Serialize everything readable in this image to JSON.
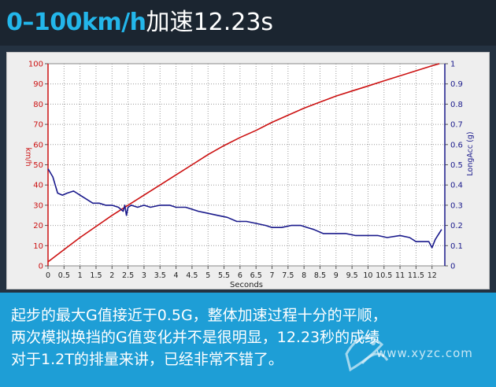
{
  "header": {
    "title_metric": "0–100km/h",
    "title_rest": "加速12.23s"
  },
  "caption": {
    "lines": [
      "起步的最大G值接近于0.5G，整体加速过程十分的平顺，",
      "两次模拟换挡的G值变化并不是很明显，12.23秒的成绩",
      "对于1.2T的排量来讲，已经非常不错了。"
    ]
  },
  "watermark": {
    "text": "www.xyzc.com"
  },
  "chart_data": {
    "type": "line",
    "title": "",
    "xlabel": "Seconds",
    "ylabel_left": "km/h",
    "ylabel_right": "LongAcc (g)",
    "xlim": [
      0,
      12.4
    ],
    "ylim_left": [
      0,
      100
    ],
    "ylim_right": [
      0,
      1
    ],
    "x_ticks": [
      "0",
      "0.5",
      "1",
      "1.5",
      "2",
      "2.5",
      "3",
      "3.5",
      "4",
      "4.5",
      "5",
      "5.5",
      "6",
      "6.5",
      "7",
      "7.5",
      "8",
      "8.5",
      "9",
      "9.5",
      "10",
      "10.5",
      "11",
      "11.5",
      "12"
    ],
    "y_ticks_left": [
      "0",
      "10",
      "20",
      "30",
      "40",
      "50",
      "60",
      "70",
      "80",
      "90",
      "100"
    ],
    "y_ticks_right": [
      "0",
      "0.1",
      "0.2",
      "0.3",
      "0.4",
      "0.5",
      "0.6",
      "0.7",
      "0.8",
      "0.9",
      "1"
    ],
    "grid": true,
    "colors": {
      "speed": "#cc1111",
      "acc": "#1a1a8c",
      "axis_left": "#cc1111",
      "axis_right": "#1a1a8c"
    },
    "series": [
      {
        "axis": "left",
        "x": [
          0,
          0.5,
          1,
          1.5,
          2,
          2.5,
          3,
          3.5,
          4,
          4.5,
          5,
          5.5,
          6,
          6.5,
          7,
          7.5,
          8,
          8.5,
          9,
          9.5,
          10,
          10.5,
          11,
          11.5,
          12,
          12.23
        ],
        "values": [
          2,
          8,
          14,
          19.5,
          25,
          30,
          35,
          40,
          45,
          50,
          55,
          59.5,
          63.5,
          67,
          71,
          74.5,
          78,
          81,
          84,
          86.5,
          89,
          91.5,
          94,
          96.5,
          99,
          100
        ]
      },
      {
        "axis": "right",
        "x": [
          0,
          0.15,
          0.3,
          0.45,
          0.6,
          0.8,
          0.9,
          1,
          1.2,
          1.4,
          1.6,
          1.8,
          2,
          2.2,
          2.35,
          2.4,
          2.45,
          2.5,
          2.6,
          2.8,
          3,
          3.2,
          3.5,
          3.8,
          4,
          4.3,
          4.5,
          4.7,
          5,
          5.3,
          5.6,
          5.9,
          6.2,
          6.5,
          6.8,
          7,
          7.3,
          7.6,
          7.9,
          8.1,
          8.3,
          8.6,
          9,
          9.3,
          9.6,
          10,
          10.3,
          10.6,
          11,
          11.3,
          11.5,
          11.7,
          11.9,
          12,
          12.1,
          12.3
        ],
        "values": [
          0.48,
          0.44,
          0.36,
          0.35,
          0.36,
          0.37,
          0.36,
          0.35,
          0.33,
          0.31,
          0.31,
          0.3,
          0.3,
          0.29,
          0.27,
          0.3,
          0.25,
          0.29,
          0.3,
          0.29,
          0.3,
          0.29,
          0.3,
          0.3,
          0.29,
          0.29,
          0.28,
          0.27,
          0.26,
          0.25,
          0.24,
          0.22,
          0.22,
          0.21,
          0.2,
          0.19,
          0.19,
          0.2,
          0.2,
          0.19,
          0.18,
          0.16,
          0.16,
          0.16,
          0.15,
          0.15,
          0.15,
          0.14,
          0.15,
          0.14,
          0.12,
          0.12,
          0.12,
          0.09,
          0.13,
          0.18
        ]
      }
    ]
  }
}
